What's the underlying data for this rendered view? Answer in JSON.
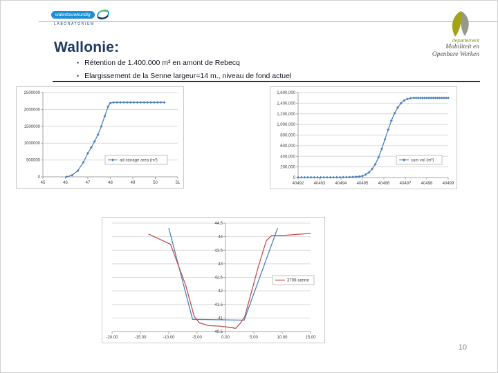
{
  "slide": {
    "title": "Wallonie:",
    "bullets": [
      "Rétention de 1.400.000 m³ en amont de Rebecq",
      "Elargissement de la Senne largeur=14 m., niveau de fond actuel"
    ],
    "page_number": "10"
  },
  "logos": {
    "waterbouwkundig": {
      "line1": "waterbouwkundig",
      "line2": "LABORATORIUM"
    },
    "mow": {
      "dept": "departement",
      "line1": "Mobiliteit en",
      "line2": "Openbare Werken"
    }
  },
  "colors": {
    "accent_blue": "#4F81BD",
    "accent_red": "#C0504D",
    "title_navy": "#1F3864",
    "gridline": "#D9D9D9",
    "axis_text": "#404040"
  },
  "chart_data": [
    {
      "type": "line",
      "title": "",
      "xlabel": "",
      "ylabel": "",
      "xlim": [
        45,
        51
      ],
      "ylim": [
        0,
        2500000
      ],
      "x_ticks": [
        45,
        46,
        47,
        48,
        49,
        50,
        51
      ],
      "x_tick_labels": [
        "45",
        "46",
        "47",
        "48",
        "49",
        "50",
        "51"
      ],
      "y_ticks": [
        0,
        500000,
        1000000,
        1500000,
        2000000,
        2500000
      ],
      "y_tick_labels": [
        "0",
        "500000",
        "1000000",
        "1500000",
        "2000000",
        "2500000"
      ],
      "grid": true,
      "legend": {
        "label": "ad storage area (m²)",
        "color": "#4F81BD",
        "position": "middle-right"
      },
      "series": [
        {
          "name": "ad storage area (m²)",
          "color": "#4F81BD",
          "marker": "diamond",
          "points": [
            [
              46.05,
              0
            ],
            [
              46.3,
              50000
            ],
            [
              46.55,
              180000
            ],
            [
              46.8,
              430000
            ],
            [
              47.0,
              700000
            ],
            [
              47.15,
              870000
            ],
            [
              47.3,
              1050000
            ],
            [
              47.45,
              1250000
            ],
            [
              47.6,
              1500000
            ],
            [
              47.75,
              1800000
            ],
            [
              47.9,
              2080000
            ],
            [
              48.0,
              2190000
            ],
            [
              48.15,
              2210000
            ],
            [
              48.3,
              2210000
            ],
            [
              48.45,
              2210000
            ],
            [
              48.6,
              2210000
            ],
            [
              48.75,
              2210000
            ],
            [
              48.9,
              2210000
            ],
            [
              49.05,
              2210000
            ],
            [
              49.2,
              2210000
            ],
            [
              49.35,
              2210000
            ],
            [
              49.5,
              2210000
            ],
            [
              49.65,
              2210000
            ],
            [
              49.8,
              2210000
            ],
            [
              49.95,
              2210000
            ],
            [
              50.1,
              2210000
            ],
            [
              50.25,
              2210000
            ],
            [
              50.4,
              2210000
            ]
          ]
        }
      ]
    },
    {
      "type": "line",
      "title": "",
      "xlabel": "",
      "ylabel": "",
      "xlim": [
        40492,
        40499
      ],
      "ylim": [
        0,
        1600000
      ],
      "x_ticks": [
        40492,
        40493,
        40494,
        40495,
        40496,
        40497,
        40498,
        40499
      ],
      "x_tick_labels": [
        "40492",
        "40493",
        "40494",
        "40495",
        "40496",
        "40497",
        "40498",
        "40499"
      ],
      "y_ticks": [
        0,
        200000,
        400000,
        600000,
        800000,
        1000000,
        1200000,
        1400000,
        1600000
      ],
      "y_tick_labels": [
        "0",
        "200,000",
        "400,000",
        "600,000",
        "800,000",
        "1,000,000",
        "1,200,000",
        "1,400,000",
        "1,600,000"
      ],
      "grid": true,
      "legend": {
        "label": "cum vol (m³)",
        "color": "#4F81BD",
        "position": "middle-right"
      },
      "series": [
        {
          "name": "cum vol (m³)",
          "color": "#4F81BD",
          "marker": "diamond",
          "points": [
            [
              40492.0,
              3000
            ],
            [
              40492.15,
              3000
            ],
            [
              40492.3,
              3000
            ],
            [
              40492.45,
              3000
            ],
            [
              40492.6,
              3000
            ],
            [
              40492.75,
              3000
            ],
            [
              40492.9,
              3000
            ],
            [
              40493.05,
              3000
            ],
            [
              40493.2,
              3000
            ],
            [
              40493.35,
              3000
            ],
            [
              40493.5,
              4000
            ],
            [
              40493.65,
              4000
            ],
            [
              40493.8,
              5000
            ],
            [
              40493.95,
              5000
            ],
            [
              40494.1,
              6000
            ],
            [
              40494.25,
              7000
            ],
            [
              40494.4,
              8000
            ],
            [
              40494.55,
              10000
            ],
            [
              40494.7,
              13000
            ],
            [
              40494.85,
              18000
            ],
            [
              40495.0,
              30000
            ],
            [
              40495.15,
              55000
            ],
            [
              40495.3,
              95000
            ],
            [
              40495.45,
              160000
            ],
            [
              40495.6,
              250000
            ],
            [
              40495.75,
              380000
            ],
            [
              40495.9,
              540000
            ],
            [
              40496.05,
              720000
            ],
            [
              40496.2,
              900000
            ],
            [
              40496.35,
              1070000
            ],
            [
              40496.5,
              1210000
            ],
            [
              40496.65,
              1320000
            ],
            [
              40496.8,
              1400000
            ],
            [
              40496.95,
              1450000
            ],
            [
              40497.1,
              1480000
            ],
            [
              40497.25,
              1495000
            ],
            [
              40497.4,
              1500000
            ],
            [
              40497.5,
              1500000
            ],
            [
              40497.6,
              1500000
            ],
            [
              40497.7,
              1500000
            ],
            [
              40497.8,
              1500000
            ],
            [
              40497.9,
              1500000
            ],
            [
              40498.0,
              1500000
            ],
            [
              40498.1,
              1500000
            ],
            [
              40498.2,
              1500000
            ],
            [
              40498.3,
              1500000
            ],
            [
              40498.4,
              1500000
            ],
            [
              40498.5,
              1500000
            ],
            [
              40498.6,
              1500000
            ],
            [
              40498.7,
              1500000
            ],
            [
              40498.8,
              1500000
            ],
            [
              40498.9,
              1500000
            ],
            [
              40499.0,
              1500000
            ]
          ]
        }
      ]
    },
    {
      "type": "line",
      "title": "",
      "xlabel": "",
      "ylabel": "",
      "xlim": [
        -20,
        15
      ],
      "ylim": [
        40.5,
        44.5
      ],
      "x_ticks": [
        -20,
        -15,
        -10,
        -5,
        0,
        5,
        10,
        15
      ],
      "x_tick_labels": [
        "-20.00",
        "-15.00",
        "-10.00",
        "-5.00",
        "0.00",
        "5.00",
        "10.00",
        "15.00"
      ],
      "y_ticks": [
        40.5,
        41,
        41.5,
        42,
        42.5,
        43,
        43.5,
        44,
        44.5
      ],
      "y_tick_labels": [
        "40.5",
        "41",
        "41.5",
        "42",
        "42.5",
        "43",
        "43.5",
        "44",
        "44.5"
      ],
      "grid": true,
      "y_axis_at_x": 0,
      "legend": {
        "label": "3799-senne",
        "color": "#C0504D",
        "position": "middle-right"
      },
      "series": [
        {
          "name": "",
          "color": "#4F81BD",
          "marker": "none",
          "points": [
            [
              -10.0,
              44.32
            ],
            [
              -5.8,
              40.95
            ],
            [
              3.3,
              40.92
            ],
            [
              9.2,
              44.32
            ]
          ]
        },
        {
          "name": "3799-senne",
          "color": "#C0504D",
          "marker": "none",
          "points": [
            [
              -13.6,
              44.1
            ],
            [
              -9.7,
              43.72
            ],
            [
              -7.0,
              42.2
            ],
            [
              -5.5,
              41.05
            ],
            [
              -4.6,
              40.82
            ],
            [
              -3.0,
              40.72
            ],
            [
              -1.0,
              40.7
            ],
            [
              0.5,
              40.66
            ],
            [
              1.8,
              40.62
            ],
            [
              2.6,
              40.8
            ],
            [
              3.4,
              41.05
            ],
            [
              4.5,
              41.9
            ],
            [
              5.8,
              42.9
            ],
            [
              7.2,
              43.85
            ],
            [
              8.2,
              44.05
            ],
            [
              10.5,
              44.05
            ],
            [
              15.0,
              44.12
            ]
          ]
        }
      ]
    }
  ]
}
